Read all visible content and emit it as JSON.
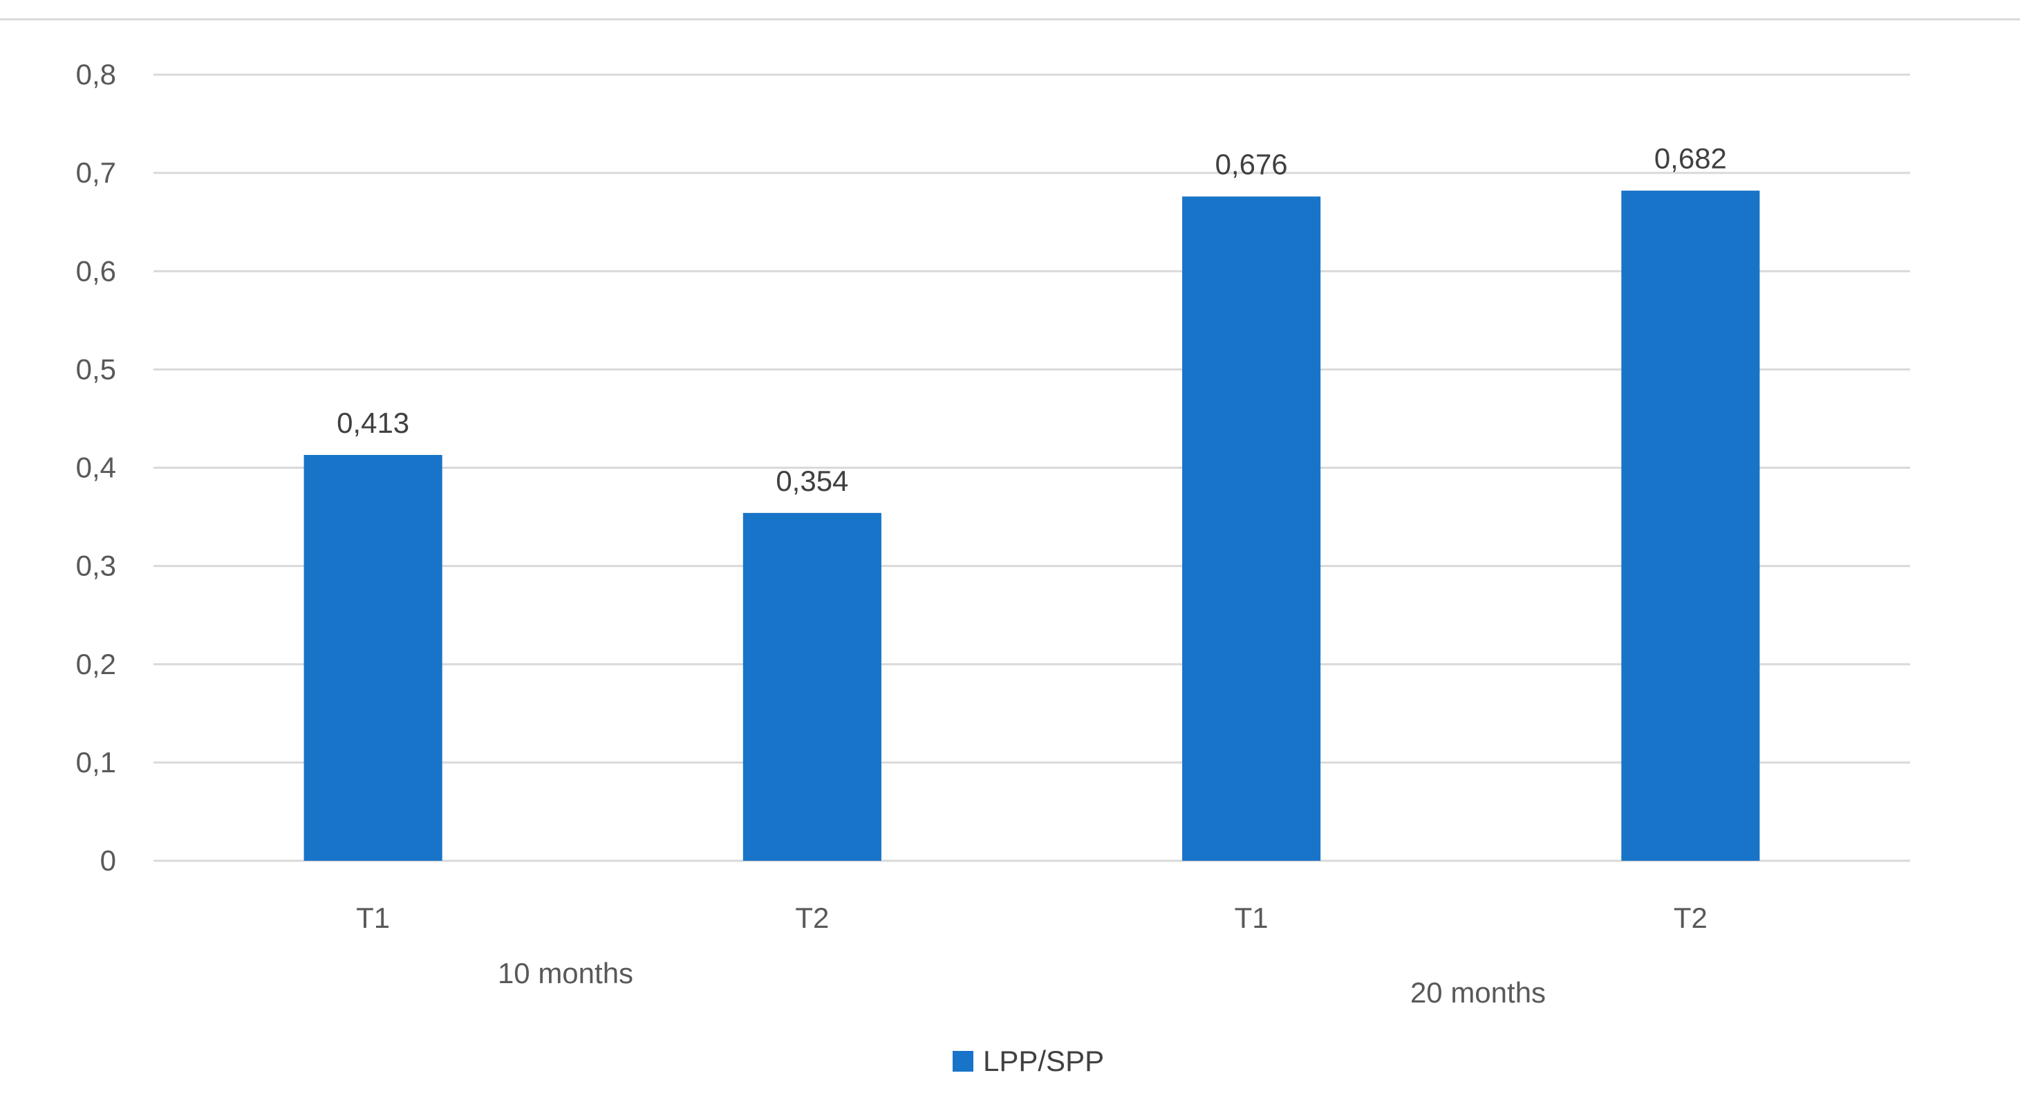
{
  "chart_data": {
    "type": "bar",
    "categories": [
      "T1",
      "T2",
      "T1",
      "T2"
    ],
    "groups": [
      {
        "label": "10 months",
        "categories": [
          "T1",
          "T2"
        ]
      },
      {
        "label": "20 months",
        "categories": [
          "T1",
          "T2"
        ]
      }
    ],
    "series": [
      {
        "name": "LPP/SPP",
        "values": [
          0.413,
          0.354,
          0.676,
          0.682
        ],
        "data_labels": [
          "0,413",
          "0,354",
          "0,676",
          "0,682"
        ],
        "color": "#1874C8"
      }
    ],
    "ylim": [
      0,
      0.8
    ],
    "y_ticks": [
      0,
      0.1,
      0.2,
      0.3,
      0.4,
      0.5,
      0.6,
      0.7,
      0.8
    ],
    "y_tick_labels": [
      "0",
      "0,1",
      "0,2",
      "0,3",
      "0,4",
      "0,5",
      "0,6",
      "0,7",
      "0,8"
    ],
    "grid": true,
    "legend_position": "bottom",
    "grid_color": "#D9D9D9"
  }
}
